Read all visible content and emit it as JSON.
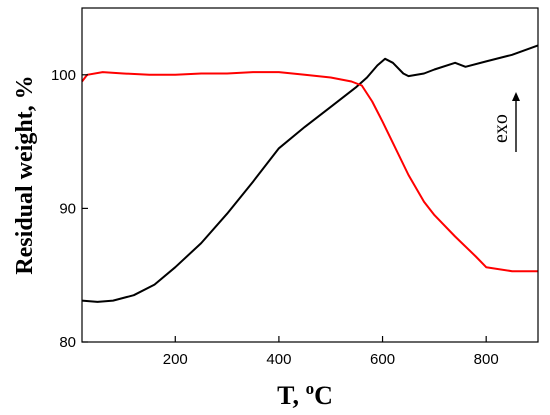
{
  "chart_data": {
    "type": "line",
    "xlabel_main": "T, ",
    "xlabel_sup": "o",
    "xlabel_unit": "C",
    "ylabel": "Residual weight, %",
    "xlim": [
      20,
      900
    ],
    "ylim": [
      80,
      105
    ],
    "xticks": [
      200,
      400,
      600,
      800
    ],
    "yticks": [
      80,
      90,
      100
    ],
    "annotation": "exo",
    "series": [
      {
        "color": "#000000",
        "x": [
          20,
          50,
          80,
          120,
          160,
          200,
          250,
          300,
          350,
          400,
          450,
          500,
          550,
          570,
          590,
          605,
          620,
          640,
          650,
          680,
          700,
          740,
          760,
          800,
          850,
          900
        ],
        "y": [
          83.1,
          83.0,
          83.1,
          83.5,
          84.3,
          85.6,
          87.4,
          89.6,
          92.0,
          94.5,
          96.1,
          97.6,
          99.1,
          99.8,
          100.7,
          101.2,
          100.9,
          100.1,
          99.9,
          100.1,
          100.4,
          100.9,
          100.6,
          101.0,
          101.5,
          102.2
        ]
      },
      {
        "color": "#ff0000",
        "x": [
          20,
          30,
          60,
          100,
          150,
          200,
          250,
          300,
          350,
          400,
          450,
          500,
          540,
          560,
          580,
          600,
          620,
          650,
          680,
          700,
          740,
          780,
          800,
          850,
          900
        ],
        "y": [
          99.5,
          100.0,
          100.2,
          100.1,
          100.0,
          100.0,
          100.1,
          100.1,
          100.2,
          100.2,
          100.0,
          99.8,
          99.5,
          99.2,
          98.0,
          96.5,
          94.9,
          92.5,
          90.5,
          89.5,
          87.9,
          86.4,
          85.6,
          85.3,
          85.3
        ]
      }
    ]
  }
}
